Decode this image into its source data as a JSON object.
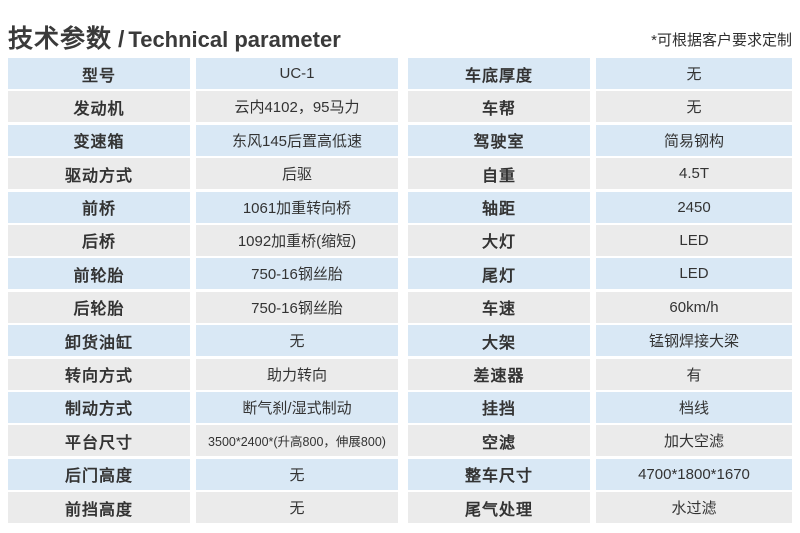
{
  "header": {
    "title_zh": "技术参数",
    "title_separator": "/",
    "title_en": "Technical parameter",
    "note": "*可根据客户要求定制"
  },
  "colors": {
    "row_blue": "#d9e8f5",
    "row_gray": "#ebebeb",
    "text_dark": "#333333",
    "page_bg": "#ffffff"
  },
  "left_table": {
    "rows": [
      {
        "label": "型号",
        "value": "UC-1"
      },
      {
        "label": "发动机",
        "value": "云内4102，95马力"
      },
      {
        "label": "变速箱",
        "value": "东风145后置高低速"
      },
      {
        "label": "驱动方式",
        "value": "后驱"
      },
      {
        "label": "前桥",
        "value": "1061加重转向桥"
      },
      {
        "label": "后桥",
        "value": "1092加重桥(缩短)"
      },
      {
        "label": "前轮胎",
        "value": "750-16钢丝胎"
      },
      {
        "label": "后轮胎",
        "value": "750-16钢丝胎"
      },
      {
        "label": "卸货油缸",
        "value": "无"
      },
      {
        "label": "转向方式",
        "value": "助力转向"
      },
      {
        "label": "制动方式",
        "value": "断气刹/湿式制动"
      },
      {
        "label": "平台尺寸",
        "value": "3500*2400*(升高800，伸展800)"
      },
      {
        "label": "后门高度",
        "value": "无"
      },
      {
        "label": "前挡高度",
        "value": "无"
      }
    ]
  },
  "right_table": {
    "rows": [
      {
        "label": "车底厚度",
        "value": "无"
      },
      {
        "label": "车帮",
        "value": "无"
      },
      {
        "label": "驾驶室",
        "value": "简易钢构"
      },
      {
        "label": "自重",
        "value": "4.5T"
      },
      {
        "label": "轴距",
        "value": "2450"
      },
      {
        "label": "大灯",
        "value": "LED"
      },
      {
        "label": "尾灯",
        "value": "LED"
      },
      {
        "label": "车速",
        "value": "60km/h"
      },
      {
        "label": "大架",
        "value": "锰钢焊接大梁"
      },
      {
        "label": "差速器",
        "value": "有"
      },
      {
        "label": "挂挡",
        "value": "档线"
      },
      {
        "label": "空滤",
        "value": "加大空滤"
      },
      {
        "label": "整车尺寸",
        "value": "4700*1800*1670"
      },
      {
        "label": "尾气处理",
        "value": "水过滤"
      }
    ]
  }
}
